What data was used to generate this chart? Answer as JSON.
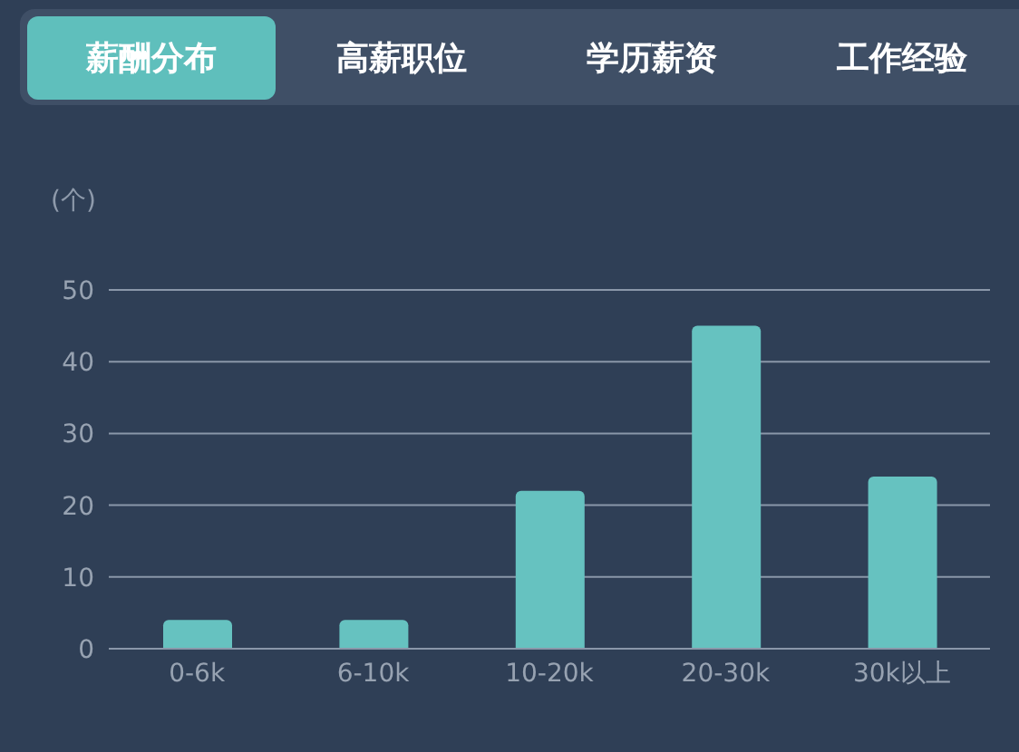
{
  "chart_data": {
    "type": "bar",
    "ylabel": "(个)",
    "annotations": [
      "薪酬分布",
      "高薪职位",
      "学历薪资",
      "工作经验"
    ],
    "categories": [
      "0-6k",
      "6-10k",
      "10-20k",
      "20-30k",
      "30k以上"
    ],
    "values": [
      4,
      4,
      22,
      45,
      24
    ],
    "color": "#66c2c0",
    "ylim": [
      0,
      50
    ],
    "yticks": [
      0,
      10,
      20,
      30,
      40,
      50
    ],
    "grid": "y"
  }
}
